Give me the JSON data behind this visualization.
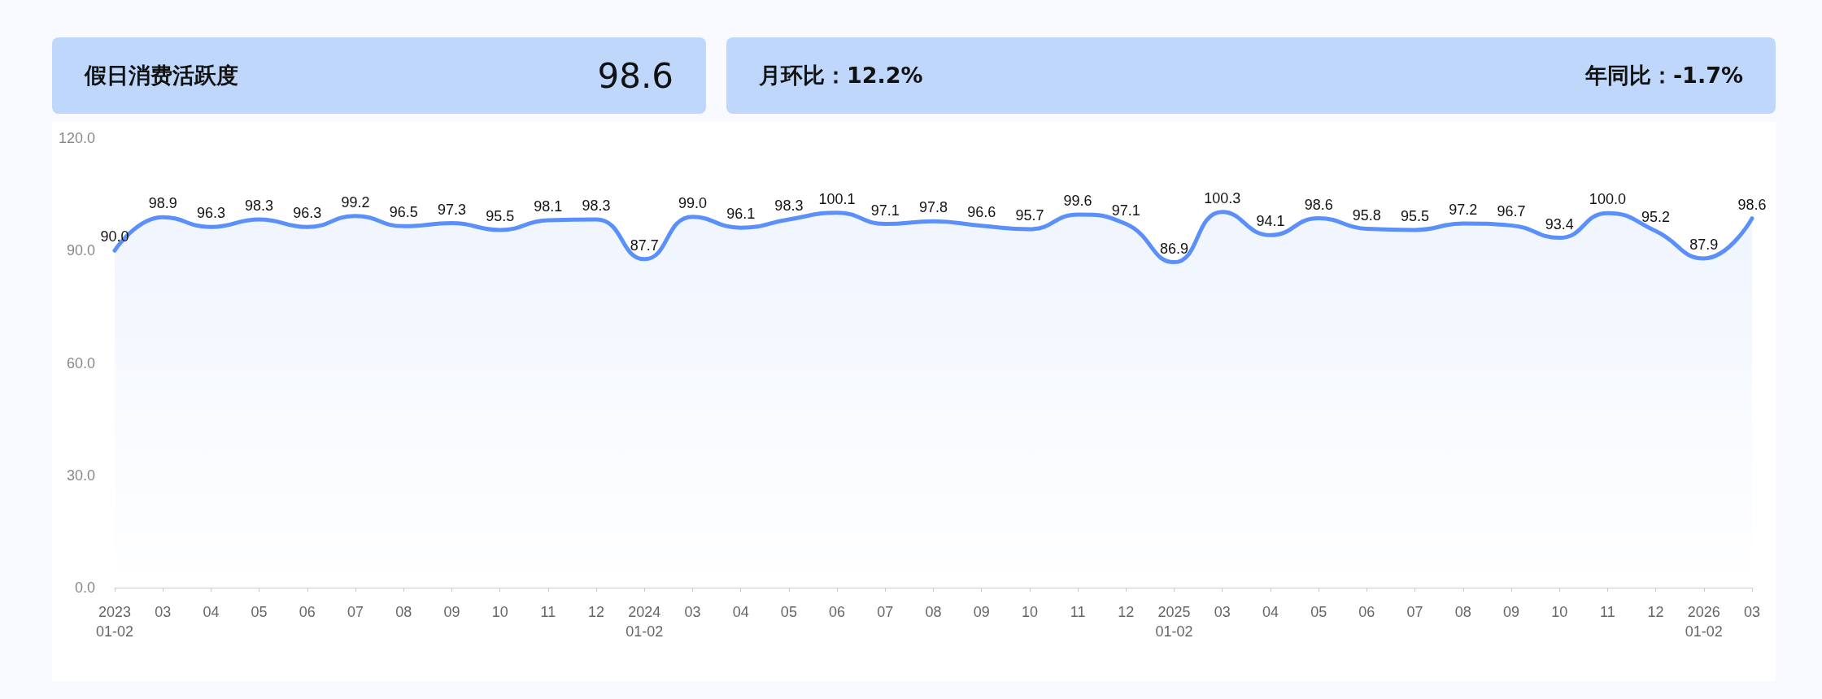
{
  "chart_data": {
    "type": "area",
    "title": "假日消费活跃度",
    "annotations": [
      "98.6",
      "月环比：12.2%",
      "年同比：-1.7%"
    ],
    "categories": [
      "2023\n01-02",
      "03",
      "04",
      "05",
      "06",
      "07",
      "08",
      "09",
      "10",
      "11",
      "12",
      "2024\n01-02",
      "03",
      "04",
      "05",
      "06",
      "07",
      "08",
      "09",
      "10",
      "11",
      "12",
      "2025\n01-02",
      "03",
      "04",
      "05",
      "06",
      "07",
      "08",
      "09",
      "10",
      "11",
      "12",
      "2026\n01-02",
      "03"
    ],
    "series": [
      {
        "color": "#5b8ff9",
        "values": [
          90.0,
          98.9,
          96.3,
          98.3,
          96.3,
          99.2,
          96.5,
          97.3,
          95.5,
          98.1,
          98.3,
          87.7,
          99.0,
          96.1,
          98.3,
          100.1,
          97.1,
          97.8,
          96.6,
          95.7,
          99.6,
          97.1,
          86.9,
          100.3,
          94.1,
          98.6,
          95.8,
          95.5,
          97.2,
          96.7,
          93.4,
          100.0,
          95.2,
          87.9,
          98.6
        ],
        "value_labels": [
          "90.0",
          "98.9",
          "96.3",
          "98.3",
          "96.3",
          "99.2",
          "96.5",
          "97.3",
          "95.5",
          "98.1",
          "98.3",
          "87.7",
          "99.0",
          "96.1",
          "98.3",
          "100.1",
          "97.1",
          "97.8",
          "96.6",
          "95.7",
          "99.6",
          "97.1",
          "86.9",
          "100.3",
          "94.1",
          "98.6",
          "95.8",
          "95.5",
          "97.2",
          "96.7",
          "93.4",
          "100.0",
          "95.2",
          "87.9",
          "98.6"
        ]
      }
    ],
    "ylim": [
      0,
      120
    ],
    "yticks": [
      {
        "value": 0,
        "label": "0.0"
      },
      {
        "value": 30,
        "label": "30.0"
      },
      {
        "value": 60,
        "label": "60.0"
      },
      {
        "value": 90,
        "label": "90.0"
      },
      {
        "value": 120,
        "label": "120.0"
      }
    ],
    "grid": false,
    "marker": "none",
    "line_style": "solid"
  }
}
